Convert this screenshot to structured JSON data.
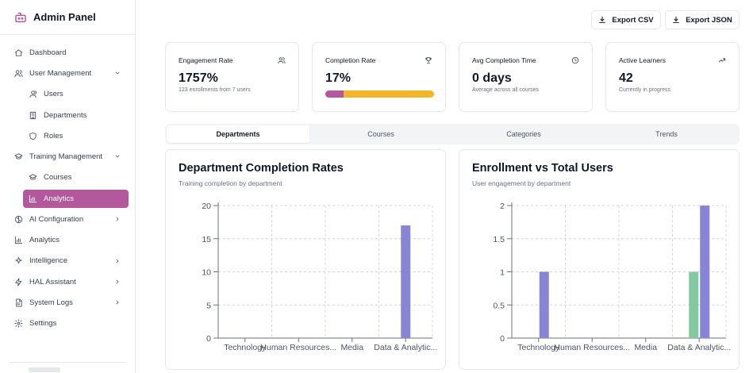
{
  "sidebar": {
    "app_title": "Admin Panel",
    "items": [
      {
        "label": "Dashboard",
        "icon": "home-icon",
        "level": 0
      },
      {
        "label": "User Management",
        "icon": "users-icon",
        "level": 0,
        "expanded": true
      },
      {
        "label": "Users",
        "icon": "user-icon",
        "level": 1
      },
      {
        "label": "Departments",
        "icon": "building-icon",
        "level": 1
      },
      {
        "label": "Roles",
        "icon": "shield-icon",
        "level": 1
      },
      {
        "label": "Training Management",
        "icon": "graduation-cap-icon",
        "level": 0,
        "expanded": true
      },
      {
        "label": "Courses",
        "icon": "graduation-cap-icon",
        "level": 1
      },
      {
        "label": "Analytics",
        "icon": "bar-chart-icon",
        "level": 1,
        "active": true
      },
      {
        "label": "AI Configuration",
        "icon": "brain-icon",
        "level": 0,
        "expanded": false
      },
      {
        "label": "Analytics",
        "icon": "bar-chart-icon",
        "level": 0
      },
      {
        "label": "Intelligence",
        "icon": "sparkles-icon",
        "level": 0,
        "expanded": false
      },
      {
        "label": "HAL Assistant",
        "icon": "bot-icon",
        "level": 0,
        "expanded": false
      },
      {
        "label": "System Logs",
        "icon": "file-text-icon",
        "level": 0,
        "expanded": false
      },
      {
        "label": "Settings",
        "icon": "gear-icon",
        "level": 0
      }
    ]
  },
  "header": {
    "export_csv": "Export CSV",
    "export_json": "Export JSON"
  },
  "stats": [
    {
      "label": "Engagement Rate",
      "value": "1757%",
      "sub": "123 enrollments from 7 users",
      "icon": "users-icon"
    },
    {
      "label": "Completion Rate",
      "value": "17%",
      "progress": 0.17,
      "icon": "trophy-icon"
    },
    {
      "label": "Avg Completion Time",
      "value": "0 days",
      "sub": "Average across all courses",
      "icon": "clock-icon"
    },
    {
      "label": "Active Learners",
      "value": "42",
      "sub": "Currently in progress",
      "icon": "trending-up-icon"
    }
  ],
  "tabs": [
    {
      "label": "Departments",
      "active": true
    },
    {
      "label": "Courses"
    },
    {
      "label": "Categories"
    },
    {
      "label": "Trends"
    }
  ],
  "colors": {
    "accent": "#b4589d",
    "progress_track": "#f2b628",
    "bar_purple": "#8884d8",
    "bar_green": "#82ca9d"
  },
  "charts": {
    "completion": {
      "title": "Department Completion Rates",
      "subtitle": "Training completion by department"
    },
    "enrollment": {
      "title": "Enrollment vs Total Users",
      "subtitle": "User engagement by department"
    }
  },
  "chart_data": [
    {
      "type": "bar",
      "title": "Department Completion Rates",
      "categories": [
        "Technology",
        "Human Resources...",
        "Media",
        "Data & Analytic..."
      ],
      "series": [
        {
          "values": [
            0,
            0,
            0,
            17
          ],
          "color": "#8884d8"
        }
      ],
      "ylim": [
        0,
        20
      ],
      "yticks": [
        "0",
        "5",
        "10",
        "15",
        "20"
      ],
      "grid": true
    },
    {
      "type": "bar",
      "title": "Enrollment vs Total Users",
      "categories": [
        "Technology",
        "Human Resources...",
        "Media",
        "Data & Analytic..."
      ],
      "series": [
        {
          "values": [
            0,
            0,
            0,
            1
          ],
          "color": "#82ca9d"
        },
        {
          "values": [
            1,
            0,
            0,
            2
          ],
          "color": "#8884d8"
        }
      ],
      "ylim": [
        0,
        2
      ],
      "yticks": [
        "0",
        "0.5",
        "1",
        "1.5",
        "2"
      ],
      "grid": true
    }
  ]
}
